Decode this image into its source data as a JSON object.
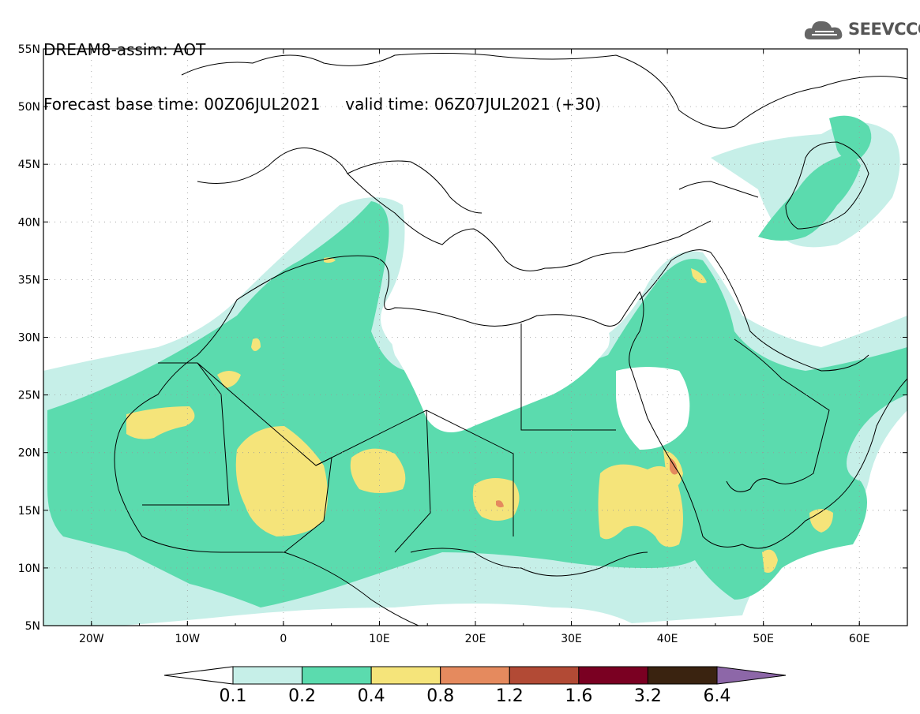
{
  "header": {
    "line1": "DREAM8-assim: AOT",
    "line2": "Forecast base time: 00Z06JUL2021     valid time: 06Z07JUL2021 (+30)"
  },
  "logo": {
    "text": "SEEVCCC",
    "icon": "cloud-icon"
  },
  "map": {
    "lon_range": [
      -25,
      65
    ],
    "lat_range": [
      5,
      55
    ],
    "lat_ticks": [
      "55N",
      "50N",
      "45N",
      "40N",
      "35N",
      "30N",
      "25N",
      "20N",
      "15N",
      "10N",
      "5N"
    ],
    "lon_ticks": [
      "20W",
      "10W",
      "0",
      "10E",
      "20E",
      "30E",
      "40E",
      "50E",
      "60E"
    ],
    "grid": true
  },
  "colorbar": {
    "labels": [
      "0.1",
      "0.2",
      "0.4",
      "0.8",
      "1.2",
      "1.6",
      "3.2",
      "6.4"
    ],
    "colors": [
      "#ffffff",
      "#c6efe8",
      "#5bdbae",
      "#f5e47a",
      "#e58a5e",
      "#b24a35",
      "#7a0022",
      "#3a2310",
      "#8d67a8"
    ]
  }
}
